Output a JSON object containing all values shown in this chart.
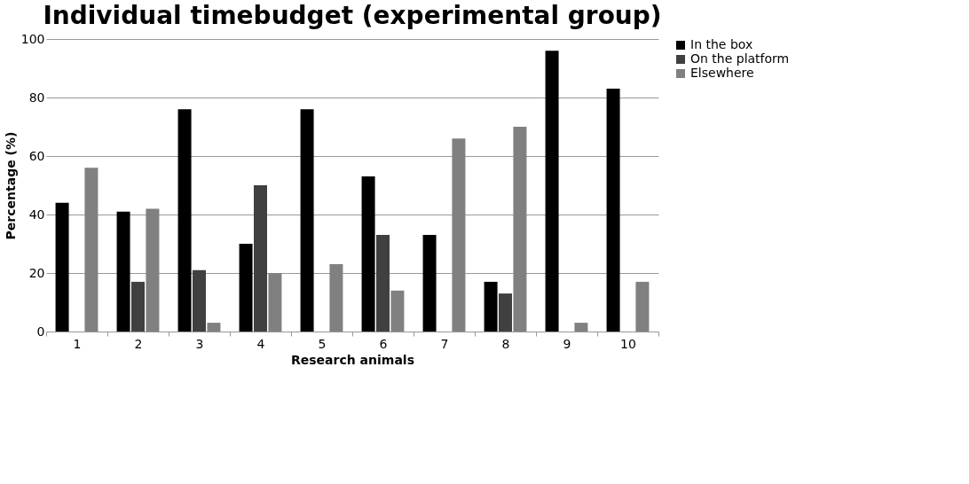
{
  "chart_data": {
    "type": "bar",
    "title": "Individual timebudget (experimental group)",
    "xlabel": "Research animals",
    "ylabel": "Percentage (%)",
    "categories": [
      "1",
      "2",
      "3",
      "4",
      "5",
      "6",
      "7",
      "8",
      "9",
      "10"
    ],
    "series": [
      {
        "name": "In the box",
        "color": "#000000",
        "values": [
          44,
          41,
          76,
          30,
          76,
          53,
          33,
          17,
          96,
          83
        ]
      },
      {
        "name": "On the platform",
        "color": "#404040",
        "values": [
          null,
          17,
          21,
          50,
          null,
          33,
          null,
          13,
          null,
          null
        ]
      },
      {
        "name": "Elsewhere",
        "color": "#808080",
        "values": [
          56,
          42,
          3,
          20,
          23,
          14,
          66,
          70,
          3,
          17
        ]
      }
    ],
    "ylim": [
      0,
      100
    ],
    "yticks": [
      0,
      20,
      40,
      60,
      80,
      100
    ],
    "grid": "y",
    "legend": "right"
  }
}
